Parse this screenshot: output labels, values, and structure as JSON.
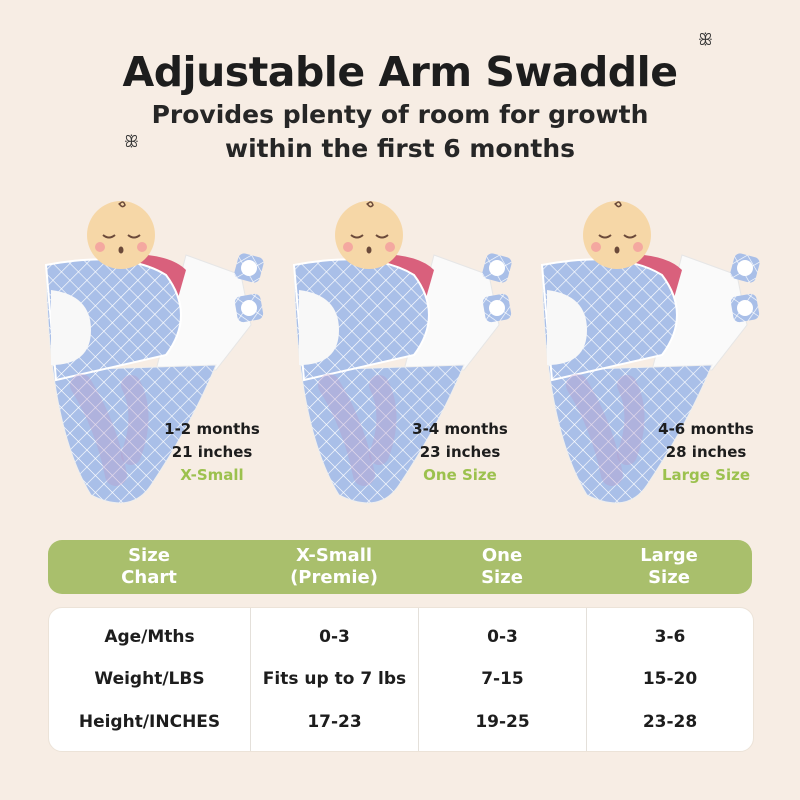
{
  "header": {
    "title": "Adjustable Arm Swaddle",
    "subtitle_line1": "Provides plenty of room for growth",
    "subtitle_line2": "within the first 6 months"
  },
  "colors": {
    "background": "#f7ede4",
    "accent_green": "#a9bf6c",
    "size_text_green": "#9cc14e",
    "swaddle_blue": "#a9bfe8",
    "sleeve_pink": "#d9607c"
  },
  "icons": [
    "butterfly-icon",
    "butterfly-icon",
    "swaddle-illustration"
  ],
  "sizes": [
    {
      "age": "1-2 months",
      "length": "21 inches",
      "size": "X-Small"
    },
    {
      "age": "3-4 months",
      "length": "23 inches",
      "size": "One Size"
    },
    {
      "age": "4-6 months",
      "length": "28 inches",
      "size": "Large Size"
    }
  ],
  "size_chart": {
    "headers": [
      [
        "Size",
        "Chart"
      ],
      [
        "X-Small",
        "(Premie)"
      ],
      [
        "One",
        "Size"
      ],
      [
        "Large",
        "Size"
      ]
    ],
    "row_labels": [
      "Age/Mths",
      "Weight/LBS",
      "Height/INCHES"
    ],
    "columns": [
      [
        "0-3",
        "Fits up to 7 lbs",
        "17-23"
      ],
      [
        "0-3",
        "7-15",
        "19-25"
      ],
      [
        "3-6",
        "15-20",
        "23-28"
      ]
    ]
  }
}
